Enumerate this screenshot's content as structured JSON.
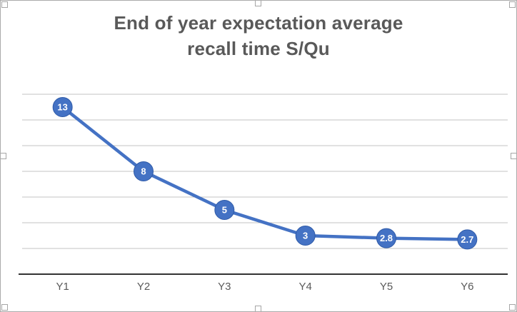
{
  "chart_data": {
    "type": "line",
    "title": "End of year expectation average recall time S/Qu",
    "title_lines": [
      "End of year expectation average",
      "recall time S/Qu"
    ],
    "categories": [
      "Y1",
      "Y2",
      "Y3",
      "Y4",
      "Y5",
      "Y6"
    ],
    "values": [
      13,
      8,
      5,
      3,
      2.8,
      2.7
    ],
    "point_labels": [
      "13",
      "8",
      "5",
      "3",
      "2.8",
      "2.7"
    ],
    "xlabel": "",
    "ylabel": "",
    "ylim": [
      0,
      14
    ],
    "gridline_step": 2,
    "grid": true,
    "legend_position": "none",
    "line_color": "#4472C4",
    "marker_fill": "#4472C4",
    "marker_border": "#2E5AA8",
    "point_label_color": "#FFFFFF",
    "grid_color": "#C3C3C3",
    "axis_color": "#333333",
    "tick_label_color": "#595959",
    "title_color": "#595959",
    "background": "#FFFFFF",
    "border_color": "#ABABAB"
  }
}
